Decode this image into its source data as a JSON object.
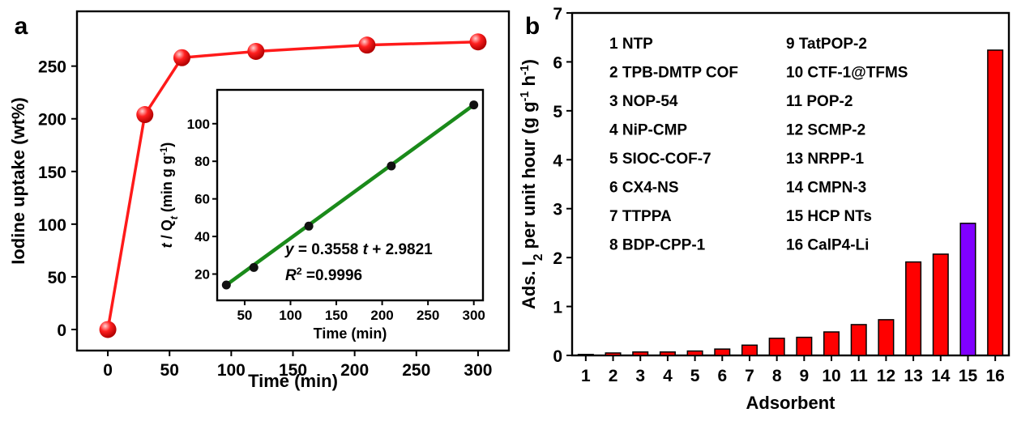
{
  "panels": {
    "a": {
      "letter": "a",
      "chart_data": {
        "type": "line",
        "xlabel": "Time (min)",
        "ylabel": "Iodine uptake (wt%)",
        "xlim": [
          -25,
          325
        ],
        "ylim": [
          -20,
          302
        ],
        "xticks": [
          0,
          50,
          100,
          150,
          200,
          250,
          300
        ],
        "yticks": [
          0,
          50,
          100,
          150,
          200,
          250
        ],
        "grid": false,
        "series": [
          {
            "color": "#ff1a1a",
            "x": [
              0,
              30,
              60,
              120,
              210,
              300
            ],
            "y": [
              0,
              204,
              258,
              264,
              270,
              273
            ]
          }
        ]
      },
      "inset": {
        "chart_data": {
          "type": "scatter",
          "xlabel": "Time (min)",
          "ylabel_parts": [
            "t",
            " / Q",
            "t",
            " (min g g",
            "-1",
            ")"
          ],
          "xlim": [
            20,
            310
          ],
          "ylim": [
            6,
            118
          ],
          "xticks": [
            50,
            100,
            150,
            200,
            250,
            300
          ],
          "yticks": [
            20,
            40,
            60,
            80,
            100
          ],
          "points": {
            "x": [
              30,
              60,
              120,
              210,
              300
            ],
            "y": [
              14.2,
              23.5,
              45.5,
              77.5,
              110
            ]
          },
          "fit": {
            "x": [
              30,
              300
            ],
            "color": "#1a8a1a"
          },
          "point_color": "#111111"
        },
        "equation_parts": [
          "y",
          " = 0.3558 ",
          "t",
          " + 2.9821"
        ],
        "r2_parts": [
          "R",
          "2",
          " =0.9996"
        ]
      }
    },
    "b": {
      "letter": "b",
      "chart_data": {
        "type": "bar",
        "xlabel": "Adsorbent",
        "ylabel_parts": [
          "Ads. I",
          "2",
          " per unit hour (g g",
          "-1",
          " h",
          "-1",
          ")"
        ],
        "ylim": [
          0,
          7
        ],
        "yticks": [
          0,
          1,
          2,
          3,
          4,
          5,
          6,
          7
        ],
        "categories": [
          "1",
          "2",
          "3",
          "4",
          "5",
          "6",
          "7",
          "8",
          "9",
          "10",
          "11",
          "12",
          "13",
          "14",
          "15",
          "16"
        ],
        "values": [
          0.02,
          0.05,
          0.07,
          0.07,
          0.09,
          0.13,
          0.21,
          0.35,
          0.37,
          0.48,
          0.63,
          0.73,
          1.91,
          2.07,
          2.7,
          6.24
        ],
        "colors": [
          "#ff0000",
          "#ff0000",
          "#ff0000",
          "#ff0000",
          "#ff0000",
          "#ff0000",
          "#ff0000",
          "#ff0000",
          "#ff0000",
          "#ff0000",
          "#ff0000",
          "#ff0000",
          "#ff0000",
          "#ff0000",
          "#8000ff",
          "#ff0000"
        ],
        "legend_entries": [
          "1 NTP",
          "2 TPB-DMTP COF",
          "3 NOP-54",
          "4 NiP-CMP",
          "5 SIOC-COF-7",
          "6 CX4-NS",
          "7 TTPPA",
          "8 BDP-CPP-1",
          "9 TatPOP-2",
          "10 CTF-1@TFMS",
          "11 POP-2",
          "12 SCMP-2",
          "13 NRPP-1",
          "14 CMPN-3",
          "15 HCP NTs",
          "16 CalP4-Li"
        ],
        "legend_highlight_index": 14,
        "legend_highlight_color": "#8000ff",
        "legend_placement": "top-left"
      }
    }
  }
}
